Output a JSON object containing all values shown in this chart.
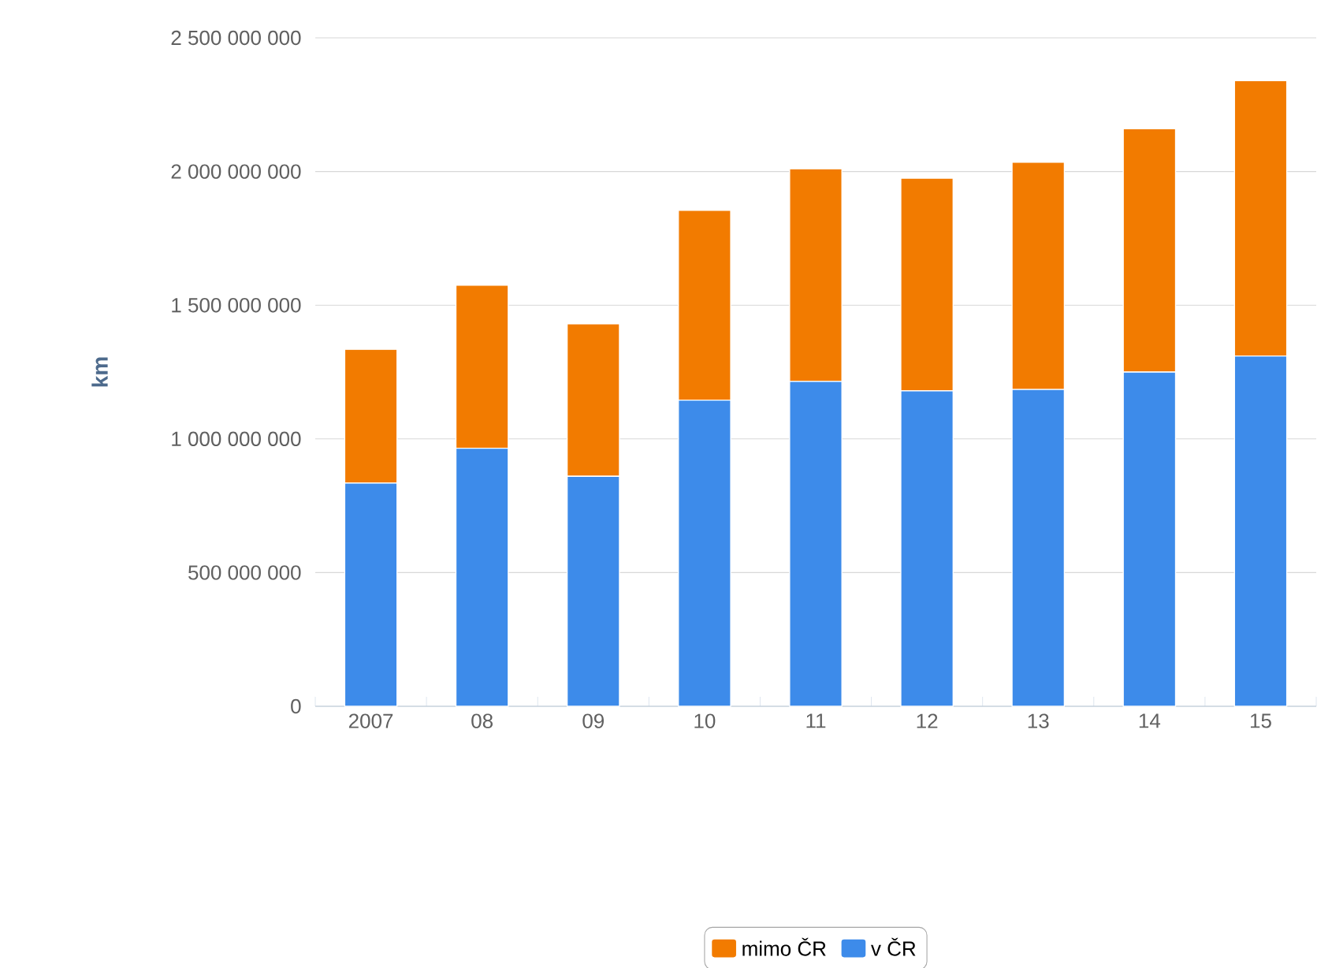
{
  "chart_data": {
    "type": "bar",
    "stacked": true,
    "ylabel": "km",
    "categories": [
      "2007",
      "08",
      "09",
      "10",
      "11",
      "12",
      "13",
      "14",
      "15"
    ],
    "series": [
      {
        "name": "v ČR",
        "color": "#3d8bea",
        "values": [
          835000000,
          965000000,
          860000000,
          1145000000,
          1215000000,
          1180000000,
          1185000000,
          1250000000,
          1310000000
        ]
      },
      {
        "name": "mimo ČR",
        "color": "#f27b00",
        "values": [
          500000000,
          610000000,
          570000000,
          710000000,
          795000000,
          795000000,
          850000000,
          910000000,
          1030000000
        ]
      }
    ],
    "ylim": [
      0,
      2500000000
    ],
    "yticks": [
      0,
      {
        "value": 500000000,
        "label": "500 000 000"
      },
      {
        "value": 1000000000,
        "label": "1 000 000 000"
      },
      {
        "value": 1500000000,
        "label": "1 500 000 000"
      },
      {
        "value": 2000000000,
        "label": "2 000 000 000"
      },
      {
        "value": 2500000000,
        "label": "2 500 000 000"
      }
    ],
    "grid": "y",
    "legend": "bottom"
  }
}
